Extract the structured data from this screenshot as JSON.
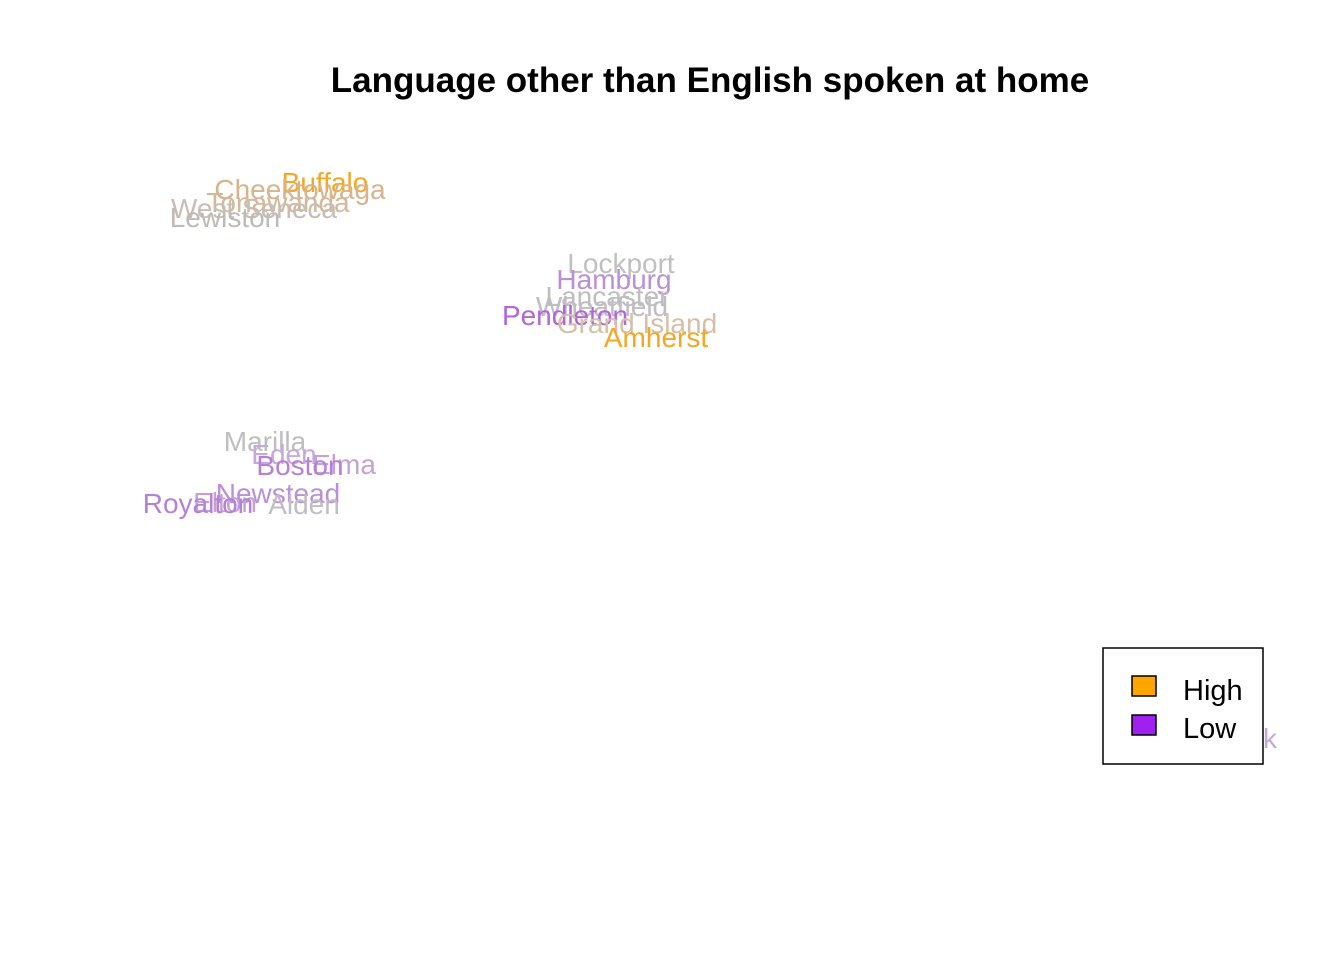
{
  "chart_data": {
    "type": "scatter",
    "title": "Language other than English spoken at home",
    "xlabel": "",
    "ylabel": "",
    "grid": false,
    "axes_visible": false,
    "legend_position": "bottom-right",
    "legend": [
      {
        "label": "High",
        "color": "#FFA500"
      },
      {
        "label": "Low",
        "color": "#A020F0"
      }
    ],
    "colors": {
      "high": "#FFA500",
      "high_mid": "#D9B38C",
      "neutral": "#BEBEBE",
      "low_mid": "#C3A3D6",
      "low": "#B266D9"
    },
    "towns": [
      {
        "name": "Buffalo",
        "color": "#F5A623"
      },
      {
        "name": "Cheektowaga",
        "color": "#D9B38C"
      },
      {
        "name": "Tonawanda",
        "color": "#D4B89A"
      },
      {
        "name": "West Seneca",
        "color": "#C7BDB3"
      },
      {
        "name": "Lewiston",
        "color": "#BEBAB6"
      },
      {
        "name": "Lockport",
        "color": "#C0C0C0"
      },
      {
        "name": "Hamburg",
        "color": "#B98FD6"
      },
      {
        "name": "Lancaster",
        "color": "#BEBEBE"
      },
      {
        "name": "Wheatfield",
        "color": "#C0BCC4"
      },
      {
        "name": "Pendleton",
        "color": "#B266D9"
      },
      {
        "name": "Grand Island",
        "color": "#D6BFA8"
      },
      {
        "name": "Amherst",
        "color": "#F5A623"
      },
      {
        "name": "Marilla",
        "color": "#BEBEBE"
      },
      {
        "name": "Eden",
        "color": "#C7A8DE"
      },
      {
        "name": "Elma",
        "color": "#C3A3D6"
      },
      {
        "name": "Boston",
        "color": "#B680D9"
      },
      {
        "name": "Newstead",
        "color": "#BB8FD9"
      },
      {
        "name": "Alden",
        "color": "#C0BDC4"
      },
      {
        "name": "Elton",
        "color": "#C3A3D6"
      },
      {
        "name": "Royalton",
        "color": "#B680D9"
      },
      {
        "name": "k",
        "color": "#C7A8DE"
      }
    ]
  }
}
